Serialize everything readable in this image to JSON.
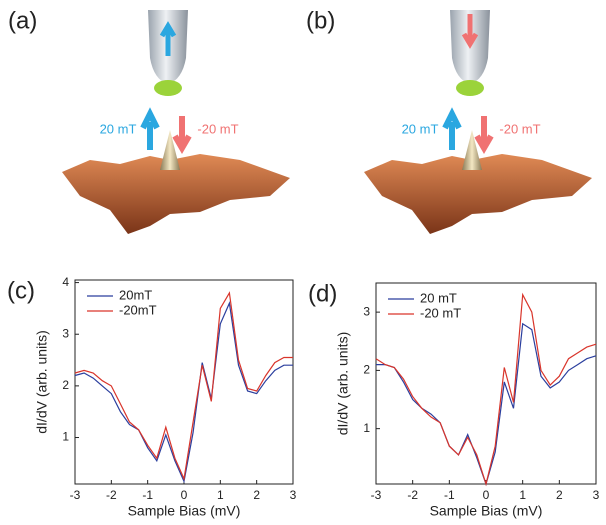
{
  "illustrations": [
    {
      "label": "(a)",
      "left_field": "20 mT",
      "right_field": "-20 mT"
    },
    {
      "label": "(b)",
      "left_field": "20 mT",
      "right_field": "-20 mT"
    }
  ],
  "chart_data": [
    {
      "type": "line",
      "panel_label": "(c)",
      "xlabel": "Sample Bias (mV)",
      "ylabel": "dI/dV (arb. units)",
      "x": [
        -3,
        -2.75,
        -2.5,
        -2.25,
        -2,
        -1.75,
        -1.5,
        -1.25,
        -1,
        -0.75,
        -0.5,
        -0.25,
        0,
        0.25,
        0.5,
        0.75,
        1,
        1.25,
        1.5,
        1.75,
        2,
        2.25,
        2.5,
        2.75,
        3
      ],
      "series": [
        {
          "name": "20mT",
          "color": "#2b3f9e",
          "values": [
            2.2,
            2.25,
            2.15,
            2.0,
            1.85,
            1.5,
            1.25,
            1.15,
            0.8,
            0.55,
            1.05,
            0.55,
            0.15,
            1.1,
            2.45,
            1.75,
            3.2,
            3.6,
            2.4,
            1.9,
            1.85,
            2.1,
            2.3,
            2.4,
            2.4
          ]
        },
        {
          "name": "-20mT",
          "color": "#d9352b",
          "values": [
            2.25,
            2.3,
            2.25,
            2.1,
            2.0,
            1.65,
            1.3,
            1.15,
            0.85,
            0.6,
            1.2,
            0.6,
            0.2,
            1.3,
            2.4,
            1.7,
            3.5,
            3.8,
            2.5,
            1.95,
            1.9,
            2.2,
            2.45,
            2.55,
            2.55
          ]
        }
      ],
      "xlim": [
        -3,
        3
      ],
      "xticks": [
        -3,
        -2,
        -1,
        0,
        1,
        2,
        3
      ],
      "ylim": [
        0.1,
        4.05
      ],
      "yticks": [
        1,
        2,
        3,
        4
      ],
      "legend": "upper left"
    },
    {
      "type": "line",
      "panel_label": "(d)",
      "xlabel": "Sample Bias (mV)",
      "ylabel": "dI/dV (arb. units)",
      "x": [
        -3,
        -2.75,
        -2.5,
        -2.25,
        -2,
        -1.75,
        -1.5,
        -1.25,
        -1,
        -0.75,
        -0.5,
        -0.25,
        0,
        0.25,
        0.5,
        0.75,
        1,
        1.25,
        1.5,
        1.75,
        2,
        2.25,
        2.5,
        2.75,
        3
      ],
      "series": [
        {
          "name": "20 mT",
          "color": "#2b3f9e",
          "values": [
            2.1,
            2.1,
            2.05,
            1.8,
            1.5,
            1.35,
            1.25,
            1.1,
            0.7,
            0.55,
            0.9,
            0.5,
            0.05,
            0.6,
            1.8,
            1.35,
            2.8,
            2.7,
            1.9,
            1.7,
            1.8,
            2.0,
            2.1,
            2.2,
            2.25
          ]
        },
        {
          "name": "-20 mT",
          "color": "#d9352b",
          "values": [
            2.2,
            2.1,
            2.05,
            1.85,
            1.55,
            1.35,
            1.2,
            1.1,
            0.7,
            0.55,
            0.85,
            0.55,
            0.05,
            0.7,
            2.05,
            1.45,
            3.3,
            3.0,
            2.0,
            1.75,
            1.9,
            2.2,
            2.3,
            2.4,
            2.45
          ]
        }
      ],
      "xlim": [
        -3,
        3
      ],
      "xticks": [
        -3,
        -2,
        -1,
        0,
        1,
        2,
        3
      ],
      "ylim": [
        0.05,
        3.5
      ],
      "yticks": [
        1,
        2,
        3
      ],
      "legend": "upper left"
    }
  ]
}
